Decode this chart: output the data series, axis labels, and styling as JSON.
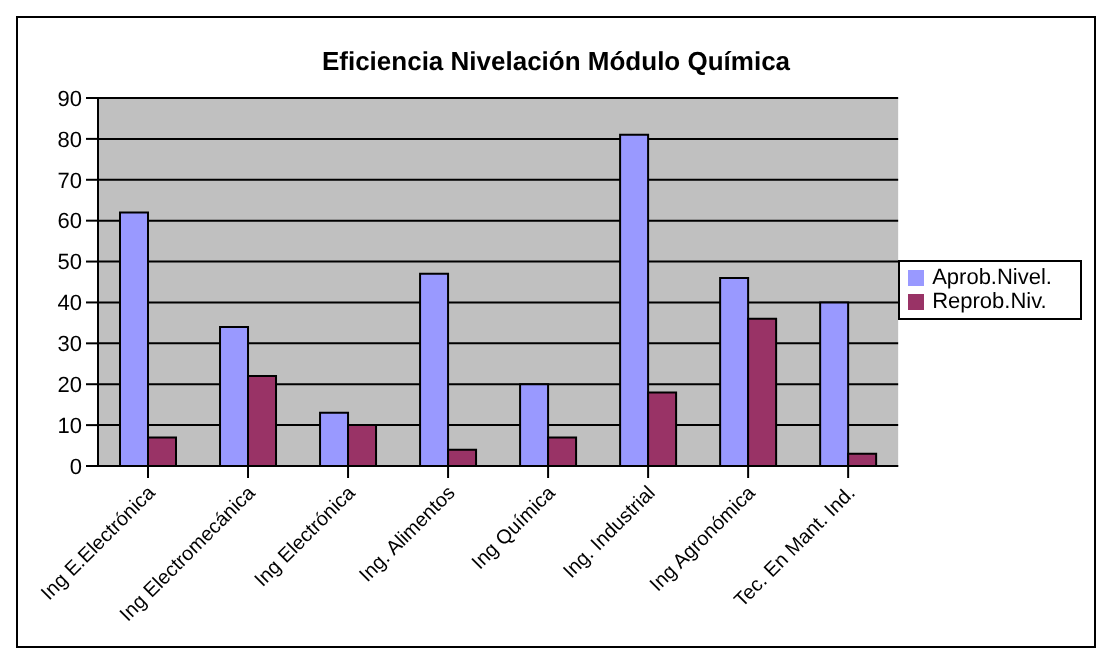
{
  "chart_data": {
    "type": "bar",
    "title": "Eficiencia Nivelación Módulo Química",
    "categories": [
      "Ing E.Electrónica",
      "Ing Electromecánica",
      "Ing Electrónica",
      "Ing. Alimentos",
      "Ing Química",
      "Ing. Industrial",
      "Ing Agronómica",
      "Tec. En Mant. Ind."
    ],
    "series": [
      {
        "name": "Aprob.Nivel.",
        "color": "#9999ff",
        "values": [
          62,
          34,
          13,
          47,
          20,
          81,
          46,
          40
        ]
      },
      {
        "name": "Reprob.Niv.",
        "color": "#993366",
        "values": [
          7,
          22,
          10,
          4,
          7,
          18,
          36,
          3
        ]
      }
    ],
    "ylim": [
      0,
      90
    ],
    "yticks": [
      0,
      10,
      20,
      30,
      40,
      50,
      60,
      70,
      80,
      90
    ],
    "grid": "y",
    "legend": "right"
  }
}
